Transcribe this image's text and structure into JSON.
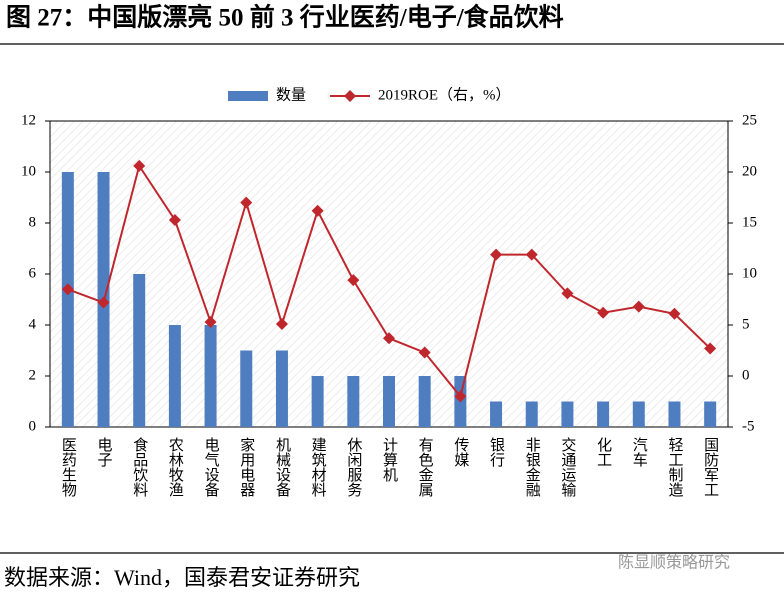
{
  "chart_data": {
    "type": "combo",
    "title": "图 27：中国版漂亮 50 前 3 行业医药/电子/食品饮料",
    "source": "数据来源：Wind，国泰君安证券研究",
    "watermark": "陈显顺策略研究",
    "categories": [
      "医药生物",
      "电子",
      "食品饮料",
      "农林牧渔",
      "电气设备",
      "家用电器",
      "机械设备",
      "建筑材料",
      "休闲服务",
      "计算机",
      "有色金属",
      "传媒",
      "银行",
      "非银金融",
      "交通运输",
      "化工",
      "汽车",
      "轻工制造",
      "国防军工"
    ],
    "series": [
      {
        "name": "数量",
        "type": "bar",
        "color": "#4f7ec0",
        "values": [
          10,
          10,
          6,
          4,
          4,
          3,
          3,
          2,
          2,
          2,
          2,
          2,
          1,
          1,
          1,
          1,
          1,
          1,
          1
        ]
      },
      {
        "name": "2019ROE（右，%）",
        "type": "line",
        "axis": "y2",
        "color": "#c0272d",
        "values": [
          8.5,
          7.2,
          20.6,
          15.3,
          5.3,
          17.0,
          5.1,
          16.2,
          9.4,
          3.7,
          2.3,
          -2.0,
          11.9,
          11.9,
          8.1,
          6.2,
          6.8,
          6.1,
          2.7
        ]
      }
    ],
    "ylim": [
      0,
      12
    ],
    "yticks": [
      0,
      2,
      4,
      6,
      8,
      10,
      12
    ],
    "y2lim": [
      -5,
      25
    ],
    "y2ticks": [
      -5,
      0,
      5,
      10,
      15,
      20,
      25
    ],
    "legend": "top"
  }
}
